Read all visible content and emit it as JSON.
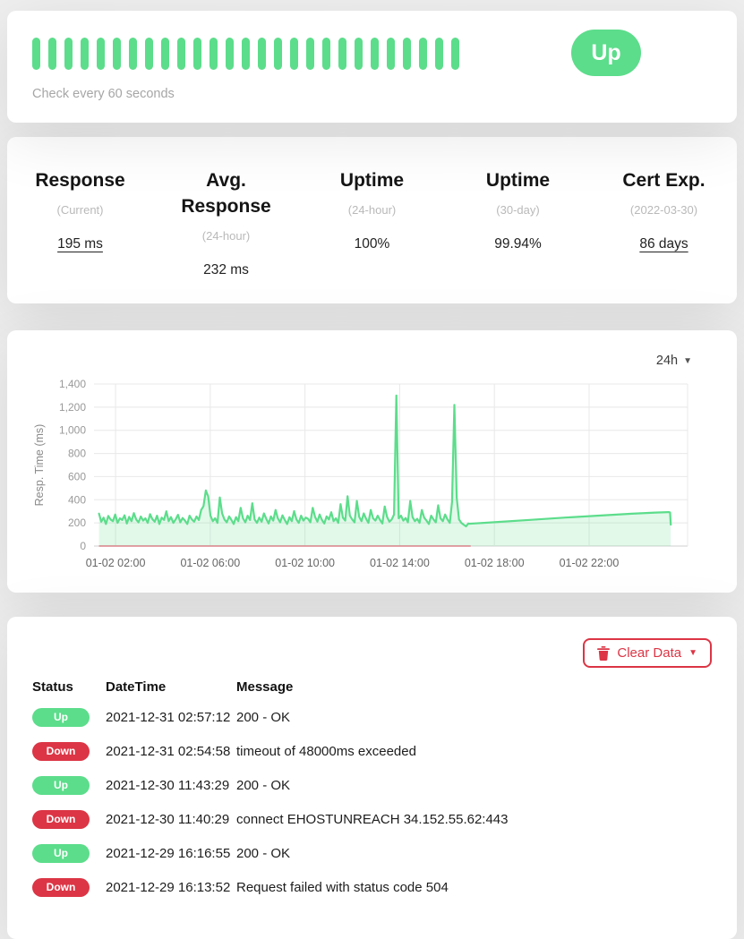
{
  "monitor": {
    "status_label": "Up",
    "check_interval_text": "Check every 60 seconds",
    "heartbeat_count": 27
  },
  "stats": {
    "columns": [
      {
        "title": "Response",
        "subtitle": "(Current)",
        "value": "195 ms"
      },
      {
        "title": "Avg. Response",
        "subtitle": "(24-hour)",
        "value": "232 ms"
      },
      {
        "title": "Uptime",
        "subtitle": "(24-hour)",
        "value": "100%"
      },
      {
        "title": "Uptime",
        "subtitle": "(30-day)",
        "value": "99.94%"
      },
      {
        "title": "Cert Exp.",
        "subtitle": "(2022-03-30)",
        "value": "86 days"
      }
    ]
  },
  "chart_card": {
    "period_label": "24h"
  },
  "chart_data": {
    "type": "area",
    "title": "",
    "xlabel": "",
    "ylabel": "Resp. Time (ms)",
    "ylim": [
      0,
      1400
    ],
    "xlim_hours": [
      1.09,
      26.16
    ],
    "grid": true,
    "legend": "none",
    "line_color": "#5cdd8b",
    "fill_color": "rgba(92,221,139,0.18)",
    "y_ticks": [
      {
        "value": 0,
        "label": "0"
      },
      {
        "value": 200,
        "label": "200"
      },
      {
        "value": 400,
        "label": "400"
      },
      {
        "value": 600,
        "label": "600"
      },
      {
        "value": 800,
        "label": "800"
      },
      {
        "value": 1000,
        "label": "1,000"
      },
      {
        "value": 1200,
        "label": "1,200"
      },
      {
        "value": 1400,
        "label": "1,400"
      }
    ],
    "x_ticks": [
      {
        "h": 2,
        "label": "01-02 02:00"
      },
      {
        "h": 6,
        "label": "01-02 06:00"
      },
      {
        "h": 10,
        "label": "01-02 10:00"
      },
      {
        "h": 14,
        "label": "01-02 14:00"
      },
      {
        "h": 18,
        "label": "01-02 18:00"
      },
      {
        "h": 22,
        "label": "01-02 22:00"
      }
    ],
    "down_line": {
      "x_start": 1.3,
      "x_end": 17.0,
      "y": 0,
      "color": "rgba(220,53,69,0.55)"
    },
    "series": [
      {
        "name": "response_time_measured",
        "x_start": 1.3,
        "x_end": 16.9,
        "values": [
          280,
          210,
          245,
          190,
          260,
          230,
          215,
          272,
          200,
          240,
          225,
          265,
          195,
          252,
          215,
          285,
          230,
          205,
          255,
          220,
          240,
          200,
          275,
          232,
          210,
          262,
          190,
          245,
          225,
          300,
          215,
          250,
          200,
          230,
          270,
          205,
          242,
          220,
          190,
          262,
          230,
          210,
          255,
          225,
          312,
          345,
          480,
          430,
          262,
          215,
          240,
          200,
          420,
          282,
          230,
          205,
          256,
          225,
          190,
          250,
          215,
          330,
          240,
          205,
          262,
          225,
          370,
          230,
          200,
          246,
          210,
          282,
          235,
          195,
          256,
          220,
          312,
          240,
          205,
          265,
          225,
          190,
          250,
          215,
          302,
          230,
          200,
          262,
          220,
          246,
          235,
          205,
          330,
          252,
          210,
          272,
          225,
          195,
          256,
          230,
          292,
          215,
          240,
          200,
          362,
          245,
          220,
          430,
          262,
          230,
          205,
          390,
          252,
          215,
          282,
          235,
          200,
          312,
          240,
          220,
          262,
          225,
          195,
          342,
          252,
          210,
          230,
          272,
          1300,
          240,
          262,
          220,
          242,
          205,
          390,
          250,
          215,
          235,
          200,
          312,
          245,
          220,
          190,
          262,
          230,
          205,
          352,
          240,
          215,
          272,
          230,
          200,
          382,
          1220,
          420,
          230,
          200,
          185,
          170,
          195
        ]
      },
      {
        "name": "response_time_trend",
        "points": [
          [
            16.9,
            192
          ],
          [
            18.0,
            206
          ],
          [
            19.5,
            226
          ],
          [
            21.0,
            246
          ],
          [
            22.5,
            264
          ],
          [
            23.8,
            279
          ],
          [
            24.8,
            289
          ],
          [
            25.35,
            293
          ],
          [
            25.42,
            290
          ],
          [
            25.45,
            185
          ]
        ]
      }
    ]
  },
  "events": {
    "clear_button_label": "Clear Data",
    "columns": [
      "Status",
      "DateTime",
      "Message"
    ],
    "rows": [
      {
        "status": "Up",
        "datetime": "2021-12-31 02:57:12",
        "message": "200 - OK"
      },
      {
        "status": "Down",
        "datetime": "2021-12-31 02:54:58",
        "message": "timeout of 48000ms exceeded"
      },
      {
        "status": "Up",
        "datetime": "2021-12-30 11:43:29",
        "message": "200 - OK"
      },
      {
        "status": "Down",
        "datetime": "2021-12-30 11:40:29",
        "message": "connect EHOSTUNREACH 34.152.55.62:443"
      },
      {
        "status": "Up",
        "datetime": "2021-12-29 16:16:55",
        "message": "200 - OK"
      },
      {
        "status": "Down",
        "datetime": "2021-12-29 16:13:52",
        "message": "Request failed with status code 504"
      }
    ]
  }
}
